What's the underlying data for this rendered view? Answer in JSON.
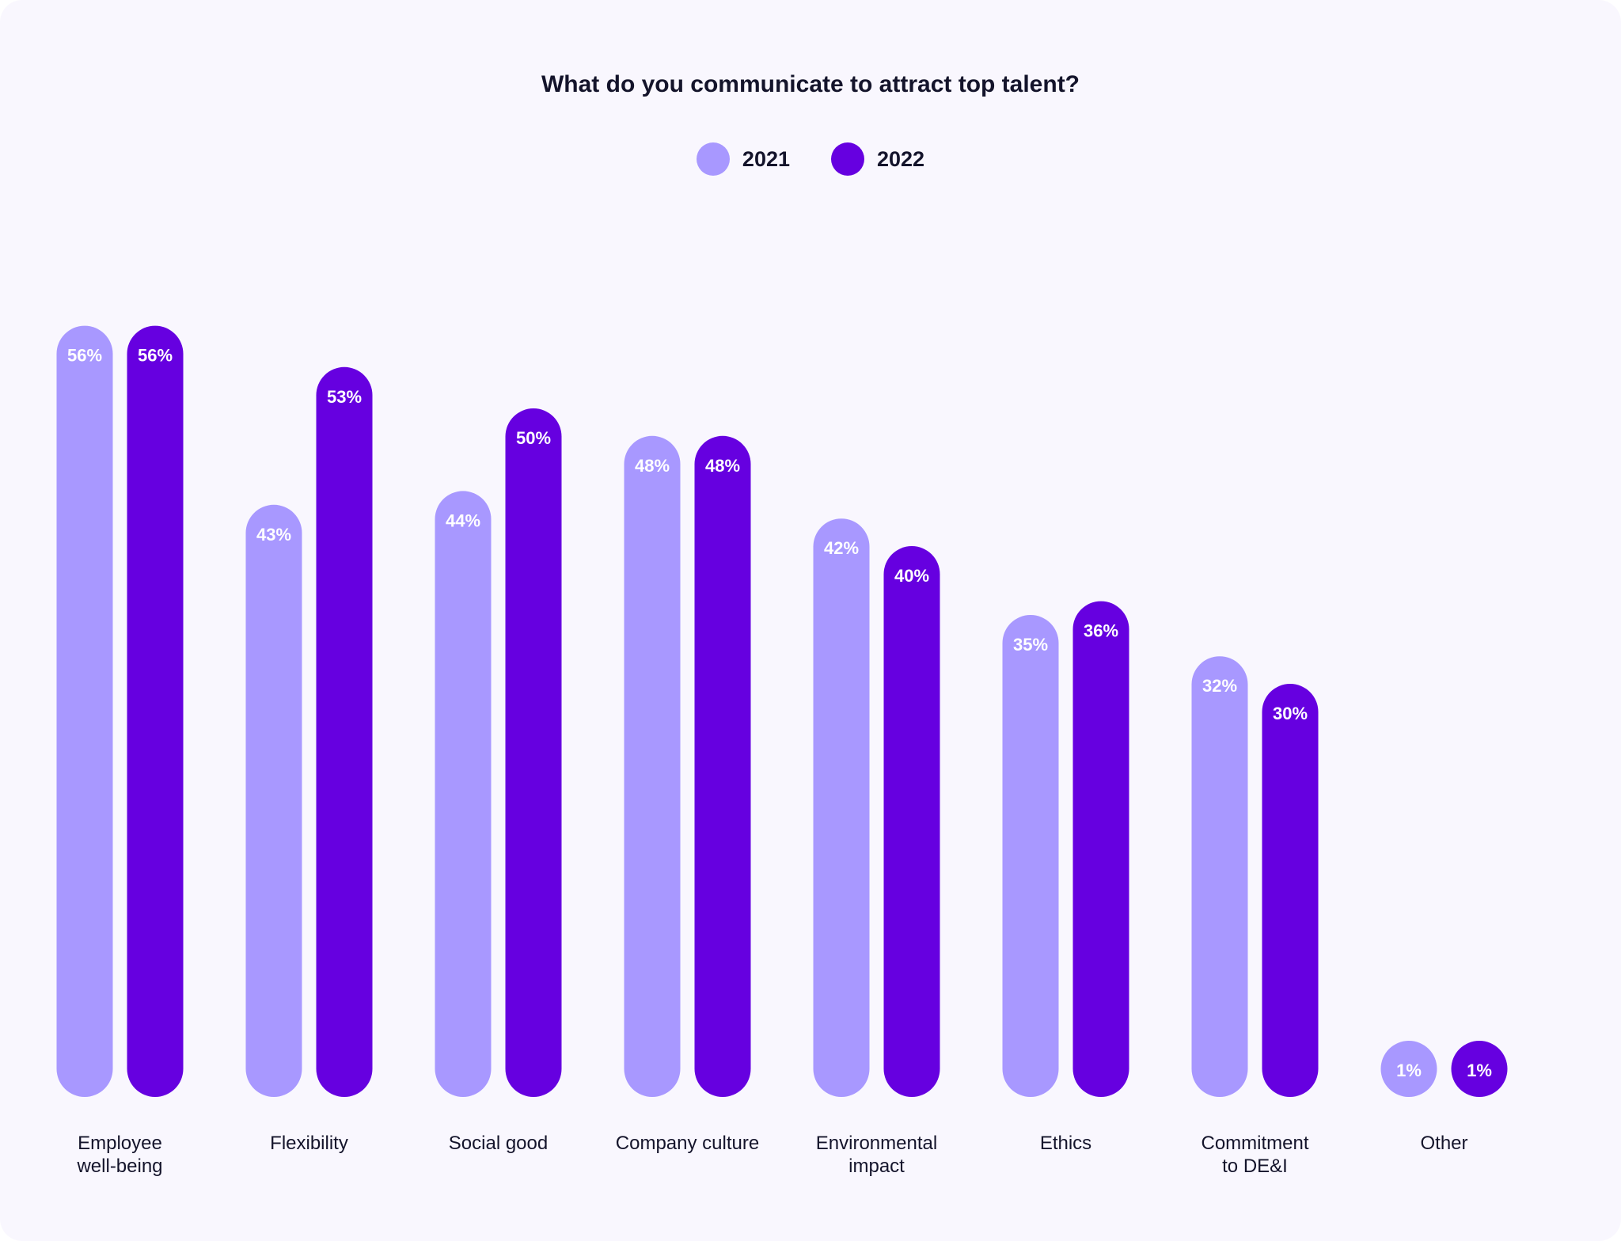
{
  "chart_data": {
    "type": "bar",
    "title": "What do you communicate to attract top talent?",
    "xlabel": "",
    "ylabel": "",
    "ylim": [
      0,
      56
    ],
    "grid": false,
    "legend_position": "top-center",
    "categories": [
      "Employee\nwell-being",
      "Flexibility",
      "Social good",
      "Company culture",
      "Environmental\nimpact",
      "Ethics",
      "Commitment\nto DE&I",
      "Other"
    ],
    "series": [
      {
        "name": "2021",
        "color": "#a898ff",
        "values": [
          56,
          43,
          44,
          48,
          42,
          35,
          32,
          1
        ],
        "labels": [
          "56%",
          "43%",
          "44%",
          "48%",
          "42%",
          "35%",
          "32%",
          "1%"
        ]
      },
      {
        "name": "2022",
        "color": "#6600e0",
        "values": [
          56,
          53,
          50,
          48,
          40,
          36,
          30,
          1
        ],
        "labels": [
          "56%",
          "53%",
          "50%",
          "48%",
          "40%",
          "36%",
          "30%",
          "1%"
        ]
      }
    ]
  }
}
